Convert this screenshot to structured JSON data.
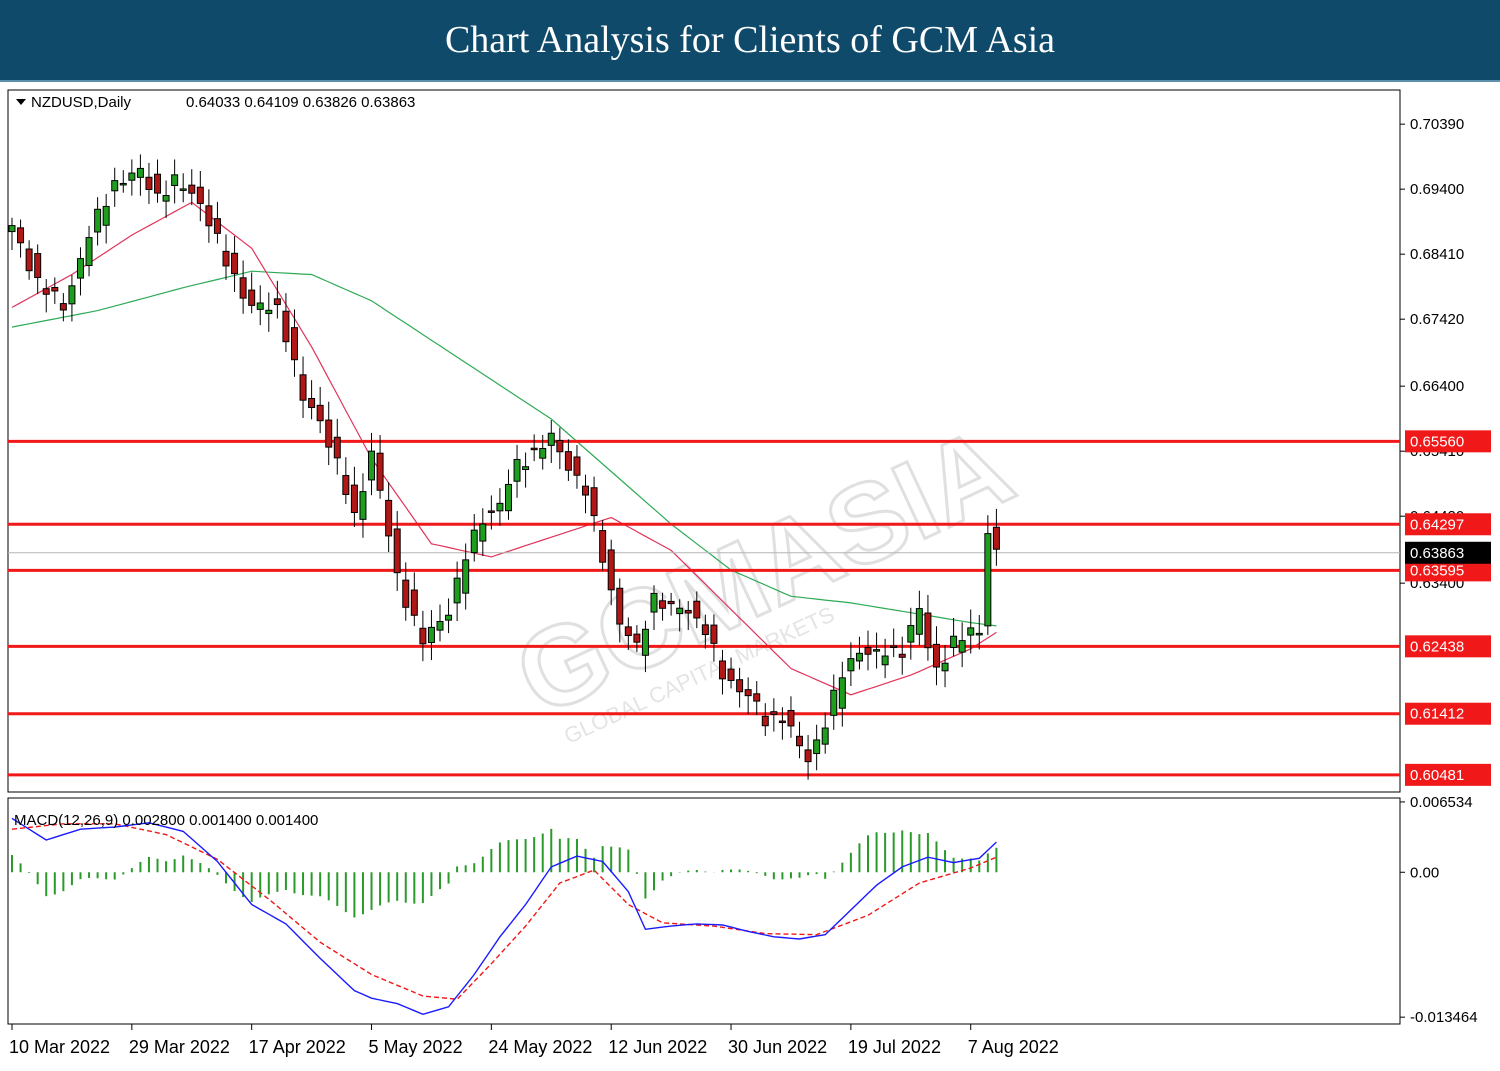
{
  "header": {
    "title": "Chart Analysis for Clients of GCM Asia"
  },
  "watermark": {
    "text": "GCMASIA",
    "subtext": "GLOBAL CAPITAL MARKETS"
  },
  "chart_data": {
    "type": "candlestick",
    "symbol_info": "NZDUSD,Daily",
    "ohlc_text": "0.64033 0.64109 0.63826 0.63863",
    "last_price": {
      "value": 0.63863,
      "label": "0.63863"
    },
    "price_axis": {
      "ylim": [
        0.6022,
        0.7091
      ],
      "ticks": [
        {
          "value": 0.7039,
          "label": "0.70390"
        },
        {
          "value": 0.694,
          "label": "0.69400"
        },
        {
          "value": 0.6841,
          "label": "0.68410"
        },
        {
          "value": 0.6742,
          "label": "0.67420"
        },
        {
          "value": 0.664,
          "label": "0.66400"
        },
        {
          "value": 0.6541,
          "label": "0.65410"
        },
        {
          "value": 0.6442,
          "label": "0.64420"
        },
        {
          "value": 0.634,
          "label": "0.63400"
        }
      ]
    },
    "support_resistance": [
      {
        "value": 0.6556,
        "label": "0.65560"
      },
      {
        "value": 0.64297,
        "label": "0.64297"
      },
      {
        "value": 0.63595,
        "label": "0.63595"
      },
      {
        "value": 0.62438,
        "label": "0.62438"
      },
      {
        "value": 0.61412,
        "label": "0.61412"
      },
      {
        "value": 0.60481,
        "label": "0.60481"
      }
    ],
    "x_labels": [
      "10 Mar 2022",
      "29 Mar 2022",
      "17 Apr 2022",
      "5 May 2022",
      "24 May 2022",
      "12 Jun 2022",
      "30 Jun 2022",
      "19 Jul 2022",
      "7 Aug 2022"
    ],
    "x_label_bars": [
      0,
      14,
      28,
      42,
      56,
      70,
      84,
      98,
      112
    ],
    "close_anchors": [
      [
        0,
        0.688
      ],
      [
        3,
        0.68
      ],
      [
        6,
        0.676
      ],
      [
        9,
        0.687
      ],
      [
        12,
        0.695
      ],
      [
        15,
        0.6965
      ],
      [
        17,
        0.693
      ],
      [
        19,
        0.695
      ],
      [
        21,
        0.6935
      ],
      [
        22,
        0.692
      ],
      [
        25,
        0.683
      ],
      [
        28,
        0.676
      ],
      [
        31,
        0.676
      ],
      [
        32,
        0.672
      ],
      [
        34,
        0.662
      ],
      [
        36,
        0.659
      ],
      [
        38,
        0.652
      ],
      [
        40,
        0.644
      ],
      [
        42,
        0.654
      ],
      [
        45,
        0.635
      ],
      [
        48,
        0.625
      ],
      [
        51,
        0.63
      ],
      [
        53,
        0.638
      ],
      [
        55,
        0.644
      ],
      [
        57,
        0.646
      ],
      [
        59,
        0.652
      ],
      [
        61,
        0.654
      ],
      [
        63,
        0.656
      ],
      [
        65,
        0.652
      ],
      [
        67,
        0.648
      ],
      [
        69,
        0.638
      ],
      [
        71,
        0.628
      ],
      [
        73,
        0.624
      ],
      [
        75,
        0.632
      ],
      [
        77,
        0.63
      ],
      [
        79,
        0.63
      ],
      [
        81,
        0.627
      ],
      [
        83,
        0.62
      ],
      [
        86,
        0.617
      ],
      [
        88,
        0.613
      ],
      [
        90,
        0.614
      ],
      [
        92,
        0.609
      ],
      [
        93,
        0.607
      ],
      [
        95,
        0.613
      ],
      [
        97,
        0.62
      ],
      [
        99,
        0.624
      ],
      [
        101,
        0.623
      ],
      [
        104,
        0.624
      ],
      [
        106,
        0.63
      ],
      [
        107,
        0.624
      ],
      [
        108,
        0.621
      ],
      [
        110,
        0.625
      ],
      [
        113,
        0.627
      ],
      [
        114,
        0.642
      ],
      [
        115,
        0.6386
      ]
    ],
    "ma_fast_anchors": [
      [
        0,
        0.676
      ],
      [
        7,
        0.681
      ],
      [
        14,
        0.687
      ],
      [
        21,
        0.692
      ],
      [
        28,
        0.685
      ],
      [
        35,
        0.67
      ],
      [
        42,
        0.653
      ],
      [
        49,
        0.64
      ],
      [
        56,
        0.638
      ],
      [
        63,
        0.641
      ],
      [
        70,
        0.644
      ],
      [
        77,
        0.639
      ],
      [
        84,
        0.63
      ],
      [
        91,
        0.621
      ],
      [
        98,
        0.617
      ],
      [
        105,
        0.62
      ],
      [
        112,
        0.624
      ],
      [
        115,
        0.6265
      ]
    ],
    "ma_slow_anchors": [
      [
        0,
        0.673
      ],
      [
        10,
        0.6755
      ],
      [
        20,
        0.679
      ],
      [
        28,
        0.6815
      ],
      [
        35,
        0.681
      ],
      [
        42,
        0.677
      ],
      [
        49,
        0.671
      ],
      [
        56,
        0.665
      ],
      [
        63,
        0.659
      ],
      [
        70,
        0.651
      ],
      [
        77,
        0.643
      ],
      [
        84,
        0.636
      ],
      [
        91,
        0.632
      ],
      [
        98,
        0.631
      ],
      [
        105,
        0.6295
      ],
      [
        112,
        0.628
      ],
      [
        115,
        0.6275
      ]
    ],
    "macd": {
      "label": "MACD(12,26,9) 0.002800 0.001400 0.001400",
      "ylim": [
        -0.0141,
        0.0069
      ],
      "ticks": [
        {
          "value": 0.006534,
          "label": "0.006534"
        },
        {
          "value": 0.0,
          "label": "0.00"
        },
        {
          "value": -0.013464,
          "label": "-0.013464"
        }
      ],
      "macd_anchors": [
        [
          0,
          0.005
        ],
        [
          4,
          0.003
        ],
        [
          8,
          0.004
        ],
        [
          12,
          0.0042
        ],
        [
          16,
          0.0046
        ],
        [
          20,
          0.0038
        ],
        [
          24,
          0.001
        ],
        [
          28,
          -0.003
        ],
        [
          32,
          -0.0048
        ],
        [
          36,
          -0.008
        ],
        [
          40,
          -0.011
        ],
        [
          42,
          -0.0117
        ],
        [
          45,
          -0.0122
        ],
        [
          48,
          -0.0132
        ],
        [
          51,
          -0.0125
        ],
        [
          54,
          -0.0095
        ],
        [
          57,
          -0.006
        ],
        [
          60,
          -0.003
        ],
        [
          63,
          0.0005
        ],
        [
          66,
          0.0015
        ],
        [
          69,
          0.001
        ],
        [
          72,
          -0.0018
        ],
        [
          74,
          -0.0053
        ],
        [
          77,
          -0.005
        ],
        [
          80,
          -0.0048
        ],
        [
          83,
          -0.0049
        ],
        [
          86,
          -0.0055
        ],
        [
          89,
          -0.006
        ],
        [
          92,
          -0.0062
        ],
        [
          95,
          -0.0058
        ],
        [
          98,
          -0.0035
        ],
        [
          101,
          -0.0012
        ],
        [
          104,
          0.0005
        ],
        [
          107,
          0.0014
        ],
        [
          110,
          0.0009
        ],
        [
          113,
          0.0013
        ],
        [
          115,
          0.0028
        ]
      ],
      "signal_anchors": [
        [
          0,
          0.004
        ],
        [
          6,
          0.0045
        ],
        [
          12,
          0.0045
        ],
        [
          18,
          0.0035
        ],
        [
          24,
          0.0012
        ],
        [
          30,
          -0.0025
        ],
        [
          36,
          -0.0065
        ],
        [
          42,
          -0.0095
        ],
        [
          48,
          -0.0115
        ],
        [
          52,
          -0.0118
        ],
        [
          56,
          -0.0085
        ],
        [
          60,
          -0.005
        ],
        [
          64,
          -0.001
        ],
        [
          68,
          0.0002
        ],
        [
          72,
          -0.003
        ],
        [
          76,
          -0.0047
        ],
        [
          82,
          -0.005
        ],
        [
          88,
          -0.0057
        ],
        [
          94,
          -0.0058
        ],
        [
          100,
          -0.004
        ],
        [
          106,
          -0.001
        ],
        [
          112,
          0.0004
        ],
        [
          115,
          0.0014
        ]
      ]
    }
  }
}
